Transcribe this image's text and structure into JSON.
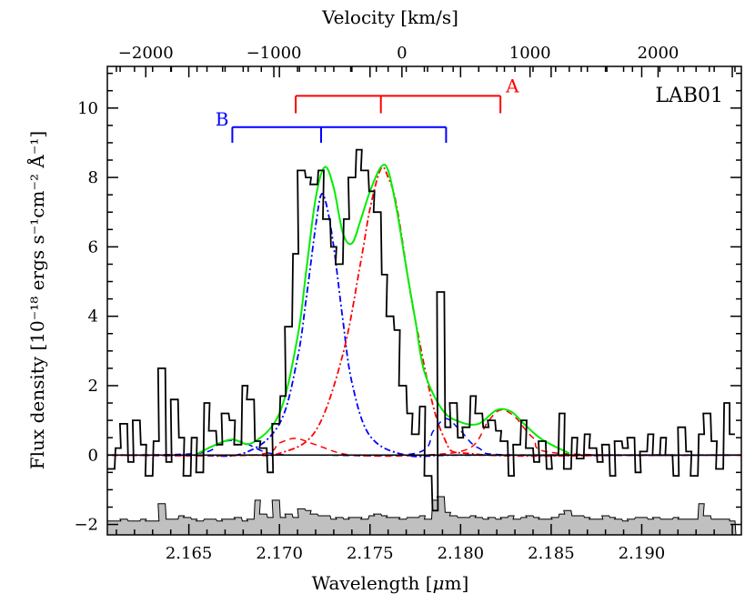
{
  "chart_data": {
    "type": "line",
    "title": "",
    "panel_label": "LAB01",
    "xlabel": "Wavelength [",
    "xlabel_mu": "μ",
    "xlabel_unit": "m]",
    "ylabel": "Flux density [10⁻¹⁸ ergs s⁻¹cm⁻² Å⁻¹]",
    "top_xlabel": "Velocity [km/s]",
    "xlim": [
      2.1605,
      2.1955
    ],
    "ylim": [
      -2.3,
      11.2
    ],
    "top_xlim": [
      -2300,
      2650
    ],
    "x_ticks": [
      "2.165",
      "2.170",
      "2.175",
      "2.180",
      "2.185",
      "2.190"
    ],
    "y_ticks": [
      "−2",
      "0",
      "2",
      "4",
      "6",
      "8",
      "10"
    ],
    "top_ticks": [
      "−2000",
      "−1000",
      "0",
      "1000",
      "2000"
    ],
    "brackets": [
      {
        "label": "A",
        "color": "#ff0000",
        "y": 10.35,
        "drop": 0.5,
        "x_left": 2.1709,
        "x_center": 2.1756,
        "x_right": 2.1822
      },
      {
        "label": "B",
        "color": "#0000ff",
        "y": 9.45,
        "drop": 0.45,
        "x_left": 2.1674,
        "x_center": 2.1723,
        "x_right": 2.1792
      }
    ],
    "series": [
      {
        "name": "",
        "style": "histogram",
        "color": "#000000",
        "x": [
          2.1607,
          2.1611,
          2.1614,
          2.1618,
          2.1621,
          2.1625,
          2.1628,
          2.1632,
          2.1635,
          2.1639,
          2.1642,
          2.1646,
          2.1649,
          2.1653,
          2.1656,
          2.166,
          2.1663,
          2.1667,
          2.167,
          2.1674,
          2.1677,
          2.1681,
          2.1684,
          2.1688,
          2.1691,
          2.1695,
          2.1698,
          2.1702,
          2.1705,
          2.1709,
          2.1712,
          2.1716,
          2.1719,
          2.1723,
          2.1726,
          2.173,
          2.1733,
          2.1737,
          2.174,
          2.1744,
          2.1747,
          2.1751,
          2.1754,
          2.1758,
          2.1761,
          2.1765,
          2.1768,
          2.1772,
          2.1775,
          2.1779,
          2.1782,
          2.1786,
          2.1789,
          2.1793,
          2.1796,
          2.18,
          2.1803,
          2.1807,
          2.181,
          2.1814,
          2.1817,
          2.1821,
          2.1824,
          2.1828,
          2.1831,
          2.1835,
          2.1838,
          2.1842,
          2.1845,
          2.1849,
          2.1852,
          2.1856,
          2.1859,
          2.1863,
          2.1866,
          2.187,
          2.1873,
          2.1877,
          2.188,
          2.1884,
          2.1887,
          2.1891,
          2.1894,
          2.1898,
          2.1901,
          2.1905,
          2.1908,
          2.1912,
          2.1915,
          2.1919,
          2.1922,
          2.1926,
          2.1929,
          2.1933,
          2.1936,
          2.194,
          2.1943,
          2.1947,
          2.195
        ],
        "values": [
          -0.4,
          0.2,
          0.9,
          -0.2,
          1.0,
          0.3,
          -0.6,
          0.4,
          2.5,
          -0.2,
          1.6,
          0.5,
          -0.6,
          0.5,
          -0.5,
          1.5,
          0.7,
          0.3,
          1.2,
          1.0,
          0.3,
          2.0,
          1.6,
          0.4,
          0.2,
          -0.5,
          0.9,
          1.7,
          3.7,
          5.8,
          8.2,
          8.0,
          7.8,
          8.2,
          6.8,
          6.0,
          5.5,
          6.8,
          8.0,
          8.8,
          8.2,
          7.6,
          7.0,
          5.2,
          4.0,
          3.6,
          2.0,
          1.2,
          0.6,
          1.4,
          -0.6,
          -1.6,
          4.7,
          0.8,
          1.5,
          0.5,
          0.8,
          1.7,
          1.2,
          0.8,
          1.0,
          0.7,
          0.4,
          -0.6,
          0.3,
          1.0,
          0.2,
          -0.2,
          0.4,
          -0.4,
          0.0,
          1.2,
          -0.4,
          0.5,
          -0.1,
          0.6,
          0.2,
          -0.2,
          0.3,
          -0.6,
          0.4,
          0.2,
          0.5,
          -0.5,
          0.1,
          0.6,
          0.0,
          0.5,
          0.0,
          -0.6,
          0.8,
          0.1,
          -0.6,
          0.6,
          1.2,
          0.4,
          -0.4,
          1.5,
          0.6
        ]
      },
      {
        "name": "",
        "style": "filled-histogram",
        "color": "#c0c0c0",
        "x": [
          2.1607,
          2.1611,
          2.1614,
          2.1618,
          2.1621,
          2.1625,
          2.1628,
          2.1632,
          2.1635,
          2.1639,
          2.1642,
          2.1646,
          2.1649,
          2.1653,
          2.1656,
          2.166,
          2.1663,
          2.1667,
          2.167,
          2.1674,
          2.1677,
          2.1681,
          2.1684,
          2.1688,
          2.1691,
          2.1695,
          2.1698,
          2.1702,
          2.1705,
          2.1709,
          2.1712,
          2.1716,
          2.1719,
          2.1723,
          2.1726,
          2.173,
          2.1733,
          2.1737,
          2.174,
          2.1744,
          2.1747,
          2.1751,
          2.1754,
          2.1758,
          2.1761,
          2.1765,
          2.1768,
          2.1772,
          2.1775,
          2.1779,
          2.1782,
          2.1786,
          2.1789,
          2.1793,
          2.1796,
          2.18,
          2.1803,
          2.1807,
          2.181,
          2.1814,
          2.1817,
          2.1821,
          2.1824,
          2.1828,
          2.1831,
          2.1835,
          2.1838,
          2.1842,
          2.1845,
          2.1849,
          2.1852,
          2.1856,
          2.1859,
          2.1863,
          2.1866,
          2.187,
          2.1873,
          2.1877,
          2.188,
          2.1884,
          2.1887,
          2.1891,
          2.1894,
          2.1898,
          2.1901,
          2.1905,
          2.1908,
          2.1912,
          2.1915,
          2.1919,
          2.1922,
          2.1926,
          2.1929,
          2.1933,
          2.1936,
          2.194,
          2.1943,
          2.1947,
          2.195
        ],
        "values": [
          -1.9,
          -1.9,
          -1.85,
          -1.9,
          -1.9,
          -1.85,
          -1.9,
          -1.9,
          -1.4,
          -1.85,
          -1.85,
          -1.75,
          -1.8,
          -1.85,
          -1.9,
          -1.85,
          -1.85,
          -1.9,
          -1.85,
          -1.85,
          -1.8,
          -1.9,
          -1.85,
          -1.3,
          -1.7,
          -1.8,
          -1.3,
          -1.8,
          -1.7,
          -1.8,
          -1.55,
          -1.6,
          -1.7,
          -1.75,
          -1.75,
          -1.85,
          -1.8,
          -1.85,
          -1.8,
          -1.8,
          -1.85,
          -1.75,
          -1.7,
          -1.75,
          -1.8,
          -1.8,
          -1.85,
          -1.8,
          -1.8,
          -1.75,
          -1.85,
          -1.3,
          -1.2,
          -1.65,
          -1.75,
          -1.8,
          -1.8,
          -1.75,
          -1.8,
          -1.85,
          -1.8,
          -1.85,
          -1.8,
          -1.75,
          -1.85,
          -1.8,
          -1.75,
          -1.8,
          -1.85,
          -1.85,
          -1.8,
          -1.7,
          -1.6,
          -1.75,
          -1.75,
          -1.8,
          -1.85,
          -1.85,
          -1.75,
          -1.8,
          -1.85,
          -1.9,
          -1.85,
          -1.8,
          -1.8,
          -1.85,
          -1.8,
          -1.85,
          -1.85,
          -1.8,
          -1.85,
          -1.85,
          -1.85,
          -1.4,
          -1.75,
          -1.85,
          -1.85,
          -1.85,
          -1.9
        ]
      },
      {
        "name": "",
        "style": "dash-dot",
        "color": "#0000ff",
        "x": [
          2.16,
          2.165,
          2.168,
          2.17,
          2.171,
          2.1715,
          2.172,
          2.1723,
          2.1726,
          2.173,
          2.1735,
          2.174,
          2.175,
          2.177,
          2.18,
          2.19,
          2.196
        ],
        "values": [
          0,
          0,
          0.05,
          0.9,
          2.8,
          4.6,
          6.6,
          7.5,
          7.2,
          6.0,
          3.9,
          2.1,
          0.55,
          0,
          0,
          0,
          0
        ]
      },
      {
        "name": "",
        "style": "dash-dot",
        "color": "#ff0000",
        "x": [
          2.16,
          2.168,
          2.17,
          2.172,
          2.1735,
          2.1745,
          2.175,
          2.1756,
          2.176,
          2.1765,
          2.1775,
          2.179,
          2.181,
          2.19,
          2.196
        ],
        "values": [
          0,
          0,
          0.05,
          0.7,
          2.9,
          5.6,
          7.1,
          8.25,
          8.0,
          7.1,
          3.9,
          0.6,
          0.02,
          0,
          0
        ]
      },
      {
        "name": "",
        "style": "dashed",
        "color": "#0000ff",
        "x": [
          2.16,
          2.1655,
          2.1667,
          2.1674,
          2.1681,
          2.1695,
          2.172,
          2.1775,
          2.1785,
          2.1792,
          2.18,
          2.181,
          2.183,
          2.196
        ],
        "values": [
          0,
          0.05,
          0.35,
          0.42,
          0.35,
          0.05,
          0,
          0.05,
          0.7,
          1.05,
          0.7,
          0.2,
          0,
          0
        ]
      },
      {
        "name": "",
        "style": "dashed",
        "color": "#ff0000",
        "x": [
          2.16,
          2.1685,
          2.17,
          2.1709,
          2.172,
          2.174,
          2.178,
          2.1805,
          2.1815,
          2.1822,
          2.183,
          2.184,
          2.1855,
          2.196
        ],
        "values": [
          0,
          0,
          0.35,
          0.48,
          0.3,
          0,
          0,
          0.2,
          0.95,
          1.3,
          1.1,
          0.5,
          0.05,
          0
        ]
      },
      {
        "name": "",
        "style": "solid",
        "color": "#00ee00",
        "x": [
          2.1655,
          2.1665,
          2.1674,
          2.1685,
          2.17,
          2.171,
          2.1715,
          2.172,
          2.1725,
          2.173,
          2.1735,
          2.174,
          2.1745,
          2.175,
          2.1756,
          2.176,
          2.1765,
          2.177,
          2.1775,
          2.178,
          2.179,
          2.18,
          2.181,
          2.182,
          2.1828,
          2.1835,
          2.1845,
          2.186
        ],
        "values": [
          0.05,
          0.3,
          0.45,
          0.35,
          1.2,
          3.4,
          5.4,
          7.4,
          8.3,
          7.7,
          6.4,
          6.1,
          6.8,
          7.6,
          8.3,
          8.2,
          7.0,
          5.4,
          3.9,
          2.4,
          1.3,
          0.95,
          0.9,
          1.3,
          1.25,
          0.9,
          0.45,
          0.05
        ]
      }
    ]
  }
}
